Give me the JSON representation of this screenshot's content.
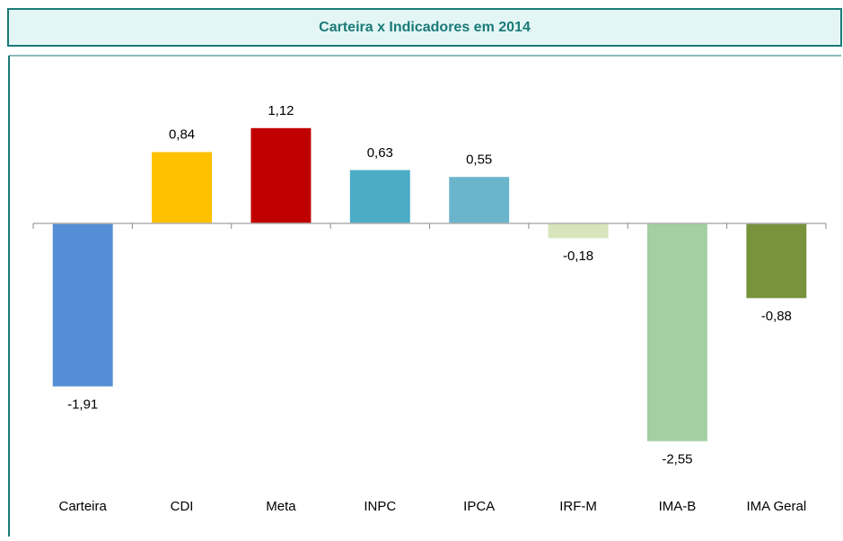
{
  "chart_data": {
    "type": "bar",
    "title": "Carteira x Indicadores em 2014",
    "categories": [
      "Carteira",
      "CDI",
      "Meta",
      "INPC",
      "IPCA",
      "IRF-M",
      "IMA-B",
      "IMA Geral"
    ],
    "values": [
      -1.91,
      0.84,
      1.12,
      0.63,
      0.55,
      -0.18,
      -2.55,
      -0.88
    ],
    "value_labels": [
      "-1,91",
      "0,84",
      "1,12",
      "0,63",
      "0,55",
      "-0,18",
      "-2,55",
      "-0,88"
    ],
    "colors": [
      "#558ed5",
      "#ffc000",
      "#c00000",
      "#4bacc6",
      "#6bb5cc",
      "#d7e4bc",
      "#a3cfa3",
      "#77933c"
    ]
  }
}
